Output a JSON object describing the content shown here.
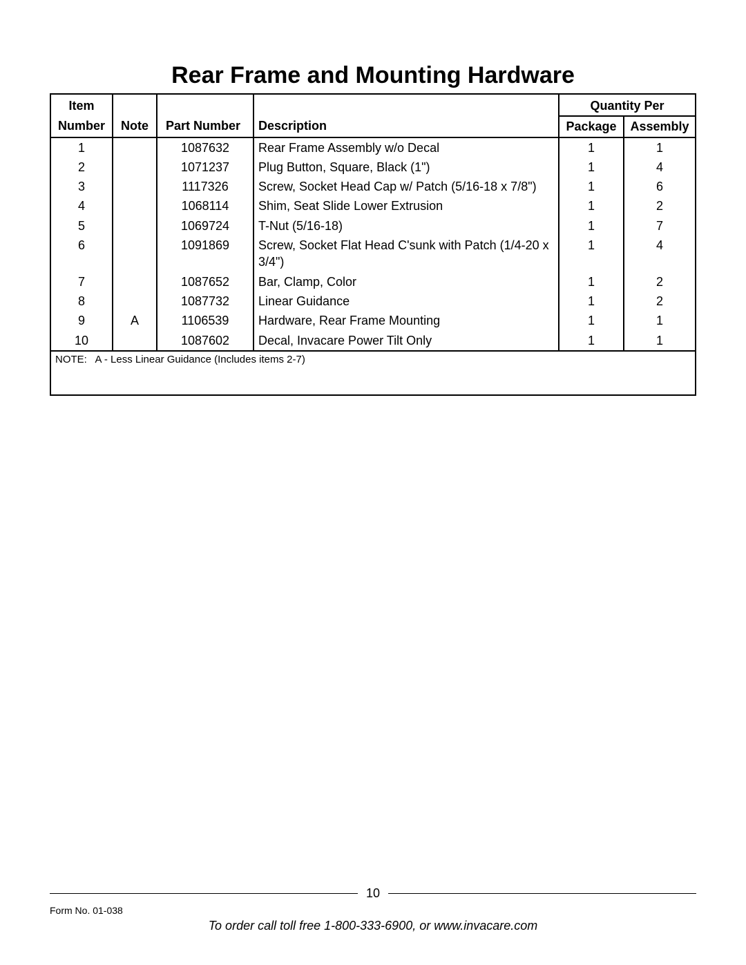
{
  "title": "Rear Frame and Mounting Hardware",
  "headers": {
    "item_top": "Item",
    "item": "Number",
    "note": "Note",
    "part": "Part Number",
    "desc": "Description",
    "qty_per": "Quantity Per",
    "pkg": "Package",
    "asm": "Assembly"
  },
  "rows": [
    {
      "item": "1",
      "note": "",
      "part": "1087632",
      "desc": "Rear Frame Assembly w/o Decal",
      "pkg": "1",
      "asm": "1"
    },
    {
      "item": "2",
      "note": "",
      "part": "1071237",
      "desc": "Plug Button, Square, Black (1\")",
      "pkg": "1",
      "asm": "4"
    },
    {
      "item": "3",
      "note": "",
      "part": "1117326",
      "desc": "Screw, Socket Head Cap w/ Patch (5/16-18 x 7/8\")",
      "pkg": "1",
      "asm": "6"
    },
    {
      "item": "4",
      "note": "",
      "part": "1068114",
      "desc": "Shim, Seat Slide Lower Extrusion",
      "pkg": "1",
      "asm": "2"
    },
    {
      "item": "5",
      "note": "",
      "part": "1069724",
      "desc": "T-Nut (5/16-18)",
      "pkg": "1",
      "asm": "7"
    },
    {
      "item": "6",
      "note": "",
      "part": "1091869",
      "desc": "Screw, Socket Flat Head C'sunk with Patch (1/4-20 x 3/4\")",
      "pkg": "1",
      "asm": "4"
    },
    {
      "item": "7",
      "note": "",
      "part": "1087652",
      "desc": "Bar, Clamp, Color",
      "pkg": "1",
      "asm": "2"
    },
    {
      "item": "8",
      "note": "",
      "part": "1087732",
      "desc": "Linear Guidance",
      "pkg": "1",
      "asm": "2"
    },
    {
      "item": "9",
      "note": "A",
      "part": "1106539",
      "desc": "Hardware, Rear Frame Mounting",
      "pkg": "1",
      "asm": "1"
    },
    {
      "item": "10",
      "note": "",
      "part": "1087602",
      "desc": "Decal, Invacare Power Tilt Only",
      "pkg": "1",
      "asm": "1"
    }
  ],
  "note_line": {
    "label": "NOTE:",
    "text": "A - Less Linear Guidance (Includes items 2-7)"
  },
  "footer": {
    "page_number": "10",
    "form_no": "Form No. 01-038",
    "order_line": "To order call toll free 1-800-333-6900, or www.invacare.com"
  }
}
